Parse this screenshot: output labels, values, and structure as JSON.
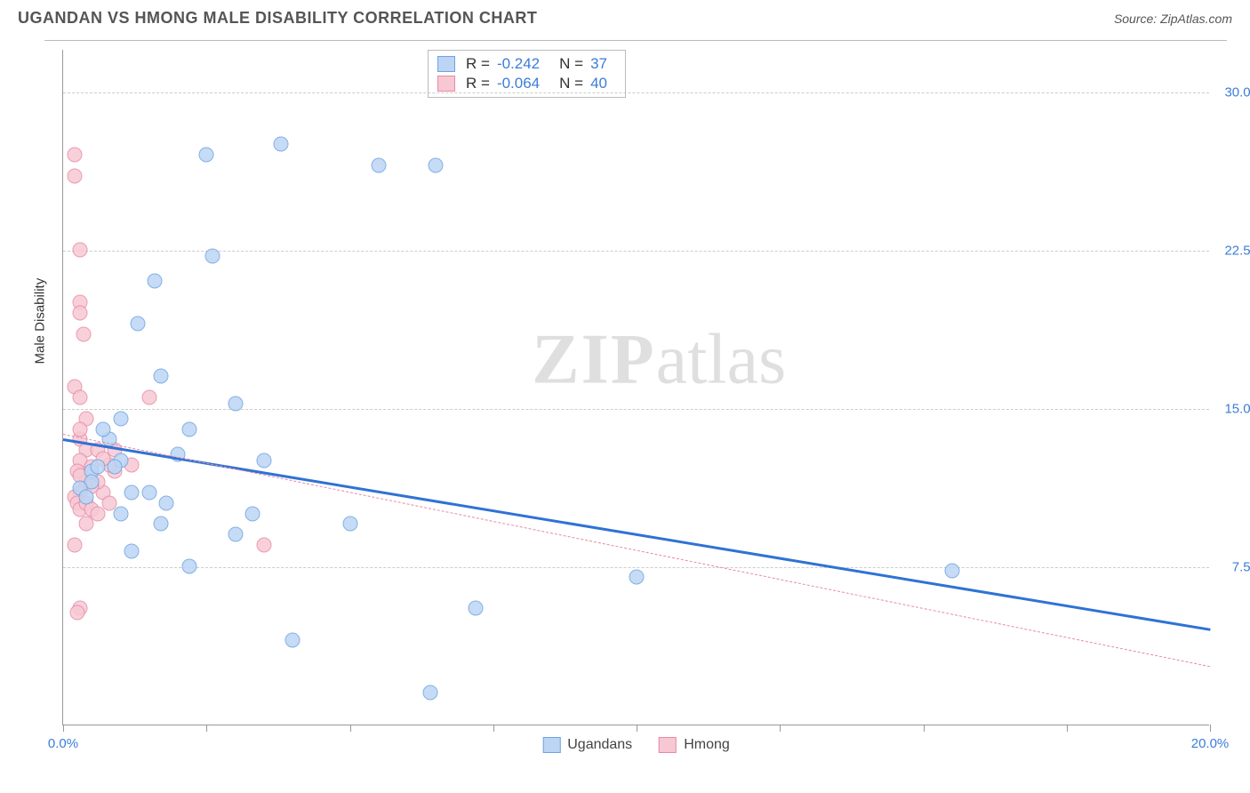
{
  "title": "UGANDAN VS HMONG MALE DISABILITY CORRELATION CHART",
  "source": "Source: ZipAtlas.com",
  "ylabel": "Male Disability",
  "watermark_bold": "ZIP",
  "watermark_light": "atlas",
  "chart": {
    "type": "scatter",
    "xlim": [
      0,
      20
    ],
    "ylim": [
      0,
      32
    ],
    "background_color": "#ffffff",
    "grid_color": "#cccccc",
    "axis_color": "#999999",
    "yticks": [
      {
        "value": 7.5,
        "label": "7.5%"
      },
      {
        "value": 15.0,
        "label": "15.0%"
      },
      {
        "value": 22.5,
        "label": "22.5%"
      },
      {
        "value": 30.0,
        "label": "30.0%"
      }
    ],
    "xticks": [
      {
        "value": 0,
        "label": "0.0%"
      },
      {
        "value": 2.5,
        "label": ""
      },
      {
        "value": 5,
        "label": ""
      },
      {
        "value": 7.5,
        "label": ""
      },
      {
        "value": 10,
        "label": ""
      },
      {
        "value": 12.5,
        "label": ""
      },
      {
        "value": 15,
        "label": ""
      },
      {
        "value": 17.5,
        "label": ""
      },
      {
        "value": 20,
        "label": "20.0%"
      }
    ],
    "series": [
      {
        "name": "Ugandans",
        "fill_color": "#bcd5f5",
        "border_color": "#6fa3e0",
        "marker_size": 17,
        "trend": {
          "y_start": 13.6,
          "y_end": 4.6,
          "color": "#2f72d4",
          "width": 3,
          "dashed": false
        },
        "stats": {
          "R": "-0.242",
          "N": "37"
        },
        "points": [
          [
            1.0,
            12.5
          ],
          [
            1.0,
            14.5
          ],
          [
            1.2,
            11.0
          ],
          [
            1.3,
            19.0
          ],
          [
            0.5,
            12.0
          ],
          [
            0.8,
            13.5
          ],
          [
            0.5,
            11.5
          ],
          [
            2.5,
            27.0
          ],
          [
            2.6,
            22.2
          ],
          [
            3.8,
            27.5
          ],
          [
            5.5,
            26.5
          ],
          [
            1.6,
            21.0
          ],
          [
            1.7,
            16.5
          ],
          [
            3.0,
            15.2
          ],
          [
            2.2,
            14.0
          ],
          [
            1.8,
            10.5
          ],
          [
            1.5,
            11.0
          ],
          [
            1.7,
            9.5
          ],
          [
            1.0,
            10.0
          ],
          [
            3.3,
            10.0
          ],
          [
            3.0,
            9.0
          ],
          [
            2.2,
            7.5
          ],
          [
            4.0,
            4.0
          ],
          [
            5.0,
            9.5
          ],
          [
            6.5,
            26.5
          ],
          [
            6.4,
            1.5
          ],
          [
            7.2,
            5.5
          ],
          [
            10.0,
            7.0
          ],
          [
            15.5,
            7.3
          ],
          [
            0.6,
            12.2
          ],
          [
            0.3,
            11.2
          ],
          [
            0.9,
            12.2
          ],
          [
            0.4,
            10.8
          ],
          [
            2.0,
            12.8
          ],
          [
            1.2,
            8.2
          ],
          [
            3.5,
            12.5
          ],
          [
            0.7,
            14.0
          ]
        ]
      },
      {
        "name": "Hmong",
        "fill_color": "#f7c8d4",
        "border_color": "#e78aa5",
        "marker_size": 17,
        "trend": {
          "y_start": 13.8,
          "y_end": 2.8,
          "color": "#e78aa5",
          "width": 1,
          "dashed": true
        },
        "stats": {
          "R": "-0.064",
          "N": "40"
        },
        "points": [
          [
            0.2,
            27.0
          ],
          [
            0.2,
            26.0
          ],
          [
            0.3,
            22.5
          ],
          [
            0.3,
            20.0
          ],
          [
            0.3,
            19.5
          ],
          [
            0.35,
            18.5
          ],
          [
            0.2,
            16.0
          ],
          [
            0.3,
            15.5
          ],
          [
            1.5,
            15.5
          ],
          [
            0.4,
            14.5
          ],
          [
            0.3,
            13.5
          ],
          [
            0.4,
            13.0
          ],
          [
            0.3,
            12.5
          ],
          [
            0.25,
            12.0
          ],
          [
            0.5,
            12.2
          ],
          [
            0.4,
            11.5
          ],
          [
            0.3,
            11.0
          ],
          [
            0.2,
            10.8
          ],
          [
            0.25,
            10.5
          ],
          [
            0.3,
            10.2
          ],
          [
            0.4,
            10.5
          ],
          [
            0.5,
            10.2
          ],
          [
            0.6,
            10.0
          ],
          [
            0.7,
            11.0
          ],
          [
            0.8,
            10.5
          ],
          [
            0.9,
            12.0
          ],
          [
            0.6,
            11.5
          ],
          [
            0.4,
            9.5
          ],
          [
            0.2,
            8.5
          ],
          [
            0.3,
            5.5
          ],
          [
            0.25,
            5.3
          ],
          [
            3.5,
            8.5
          ],
          [
            1.2,
            12.3
          ],
          [
            0.9,
            13.0
          ],
          [
            0.8,
            12.3
          ],
          [
            0.6,
            13.0
          ],
          [
            0.5,
            11.3
          ],
          [
            0.7,
            12.6
          ],
          [
            0.3,
            11.8
          ],
          [
            0.3,
            14.0
          ]
        ]
      }
    ]
  },
  "legend_top_labels": {
    "R": "R =",
    "N": "N ="
  },
  "colors": {
    "tick_label": "#3b7dd8",
    "title": "#555555",
    "ylabel": "#333333"
  }
}
